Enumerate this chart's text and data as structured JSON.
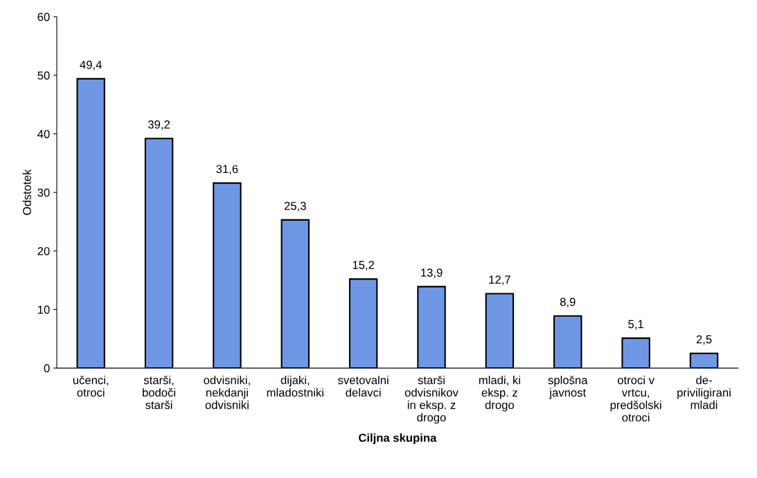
{
  "chart_data": {
    "type": "bar",
    "xlabel": "Ciljna skupina",
    "ylabel": "Odstotek",
    "categories": [
      "učenci,\notroci",
      "starši,\nbodoči\nstarši",
      "odvisniki,\nnekdanji\nodvisniki",
      "dijaki,\nmladostniki",
      "svetovalni\ndelavci",
      "starši\nodvisnikov\nin eksp. z\ndrogo",
      "mladi, ki\neksp. z\ndrogo",
      "splošna\njavnost",
      "otroci v\nvrtcu,\npredšolski\notroci",
      "de-\npriviligirani\nmladi"
    ],
    "values": [
      49.4,
      39.2,
      31.6,
      25.3,
      15.2,
      13.9,
      12.7,
      8.9,
      5.1,
      2.5
    ],
    "value_labels": [
      "49,4",
      "39,2",
      "31,6",
      "25,3",
      "15,2",
      "13,9",
      "12,7",
      "8,9",
      "5,1",
      "2,5"
    ],
    "color": "#6f97e6",
    "ylim": [
      0,
      60
    ],
    "yticks": [
      0,
      10,
      20,
      30,
      40,
      50,
      60
    ],
    "grid": false,
    "legend": false
  }
}
